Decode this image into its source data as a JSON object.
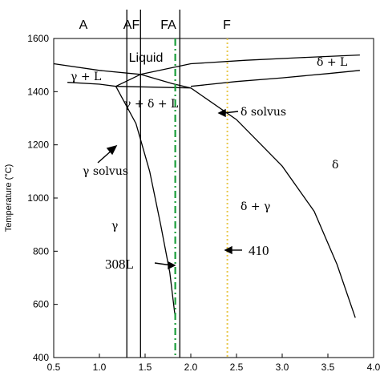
{
  "chart_data": {
    "type": "line",
    "ylabel": "Temperature (°C)",
    "xlim": [
      0.5,
      4.0
    ],
    "ylim": [
      400,
      1600
    ],
    "x_ticks": [
      "0.5",
      "1.0",
      "1.5",
      "2.0",
      "2.5",
      "3.0",
      "3.5",
      "4.0"
    ],
    "y_ticks": [
      "400",
      "600",
      "800",
      "1000",
      "1200",
      "1400",
      "1600"
    ],
    "curves": [
      {
        "name": "liquidus-left",
        "points": [
          [
            0.5,
            1505
          ],
          [
            1.0,
            1480
          ],
          [
            1.45,
            1465
          ]
        ]
      },
      {
        "name": "liquidus-right",
        "points": [
          [
            1.45,
            1465
          ],
          [
            2.0,
            1505
          ],
          [
            2.6,
            1518
          ],
          [
            3.2,
            1528
          ],
          [
            3.85,
            1538
          ]
        ]
      },
      {
        "name": "delta-liquid-boundary",
        "points": [
          [
            2.0,
            1420
          ],
          [
            2.5,
            1438
          ],
          [
            3.0,
            1452
          ],
          [
            3.5,
            1468
          ],
          [
            3.85,
            1480
          ]
        ]
      },
      {
        "name": "gamma-L-lower",
        "points": [
          [
            0.65,
            1435
          ],
          [
            1.0,
            1428
          ],
          [
            1.18,
            1420
          ]
        ]
      },
      {
        "name": "peritectic-upper-left",
        "points": [
          [
            1.18,
            1420
          ],
          [
            1.45,
            1465
          ]
        ]
      },
      {
        "name": "peritectic-line",
        "points": [
          [
            1.18,
            1420
          ],
          [
            2.0,
            1414
          ]
        ]
      },
      {
        "name": "gamma-delta-L-right",
        "points": [
          [
            1.45,
            1465
          ],
          [
            1.8,
            1430
          ],
          [
            2.0,
            1414
          ]
        ]
      },
      {
        "name": "gamma-solvus",
        "points": [
          [
            1.18,
            1420
          ],
          [
            1.4,
            1280
          ],
          [
            1.55,
            1100
          ],
          [
            1.67,
            900
          ],
          [
            1.77,
            720
          ],
          [
            1.83,
            550
          ]
        ]
      },
      {
        "name": "delta-solvus",
        "points": [
          [
            2.0,
            1414
          ],
          [
            2.5,
            1295
          ],
          [
            3.0,
            1120
          ],
          [
            3.35,
            950
          ],
          [
            3.6,
            750
          ],
          [
            3.8,
            550
          ]
        ]
      }
    ],
    "lines": [
      {
        "label": "A",
        "x": 1.3,
        "style": "solid",
        "color": "#000000"
      },
      {
        "label": "AF",
        "x": 1.45,
        "style": "solid",
        "color": "#000000"
      },
      {
        "label": "FA",
        "x": 1.88,
        "style": "solid",
        "color": "#000000"
      },
      {
        "label": "308L",
        "x": 1.83,
        "style": "dash-dot",
        "color": "#1a9e3a"
      },
      {
        "label": "F",
        "x": 2.4,
        "style": "dotted",
        "color": "#e8c84a"
      },
      {
        "label": "410",
        "x": 2.4,
        "style": "dotted",
        "color": "#e8c84a"
      }
    ],
    "top_labels": [
      "A",
      "AF",
      "FA",
      "F"
    ],
    "region_labels": [
      "Liquid",
      "γ + L",
      "δ + L",
      "γ + δ + L",
      "δ solvus",
      "γ solvus",
      "δ",
      "δ + γ",
      "γ"
    ],
    "annotations": [
      "308L",
      "410"
    ]
  },
  "colors": {
    "axis": "#000000",
    "curve": "#000000",
    "green_dashdot": "#1a9e3a",
    "yellow_dotted": "#e8c84a"
  }
}
